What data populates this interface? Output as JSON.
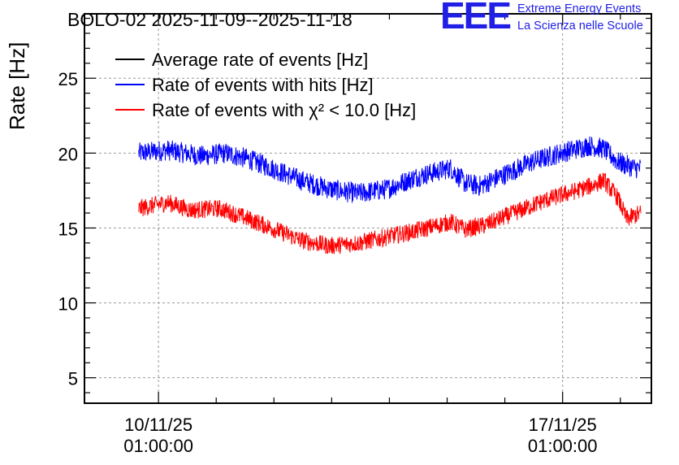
{
  "logo": {
    "letters": "EEE",
    "line1": "Extreme Energy Events",
    "line2": "La Scienza nelle Scuole",
    "color": "#1f1fe6"
  },
  "chart_data": {
    "type": "line",
    "title": "BOLO-02 2025-11-09--2025-11-18",
    "xlabel": "",
    "ylabel": "Rate [Hz]",
    "xlim_days_since_2025_11_09": [
      -0.24,
      9.58
    ],
    "ylim": [
      3.3,
      29.3
    ],
    "yticks": [
      5,
      10,
      15,
      20,
      25
    ],
    "xticks": [
      {
        "x_days": 1.042,
        "line1": "10/11/25",
        "line2": "01:00:00"
      },
      {
        "x_days": 8.042,
        "line1": "17/11/25",
        "line2": "01:00:00"
      }
    ],
    "grid": true,
    "legend_position": "top-left",
    "series": [
      {
        "name": "Average rate of events [Hz]",
        "color": "#000000",
        "points": []
      },
      {
        "name": "Rate of events with hits [Hz]",
        "color": "#0000ff",
        "noise_hz": 0.7,
        "points": [
          [
            0.7,
            20.0
          ],
          [
            1.2,
            20.2
          ],
          [
            1.8,
            19.8
          ],
          [
            2.2,
            20.0
          ],
          [
            2.6,
            19.6
          ],
          [
            3.0,
            19.0
          ],
          [
            3.5,
            18.2
          ],
          [
            4.0,
            17.6
          ],
          [
            4.5,
            17.3
          ],
          [
            5.0,
            17.6
          ],
          [
            5.5,
            18.4
          ],
          [
            6.1,
            19.0
          ],
          [
            6.35,
            18.0
          ],
          [
            6.6,
            17.8
          ],
          [
            7.0,
            18.5
          ],
          [
            7.5,
            19.4
          ],
          [
            8.0,
            20.0
          ],
          [
            8.5,
            20.5
          ],
          [
            8.75,
            20.3
          ],
          [
            9.0,
            19.4
          ],
          [
            9.3,
            19.0
          ],
          [
            9.4,
            19.0
          ]
        ]
      },
      {
        "name": "Rate of events with χ² < 10.0 [Hz]",
        "color": "#ff0000",
        "noise_hz": 0.6,
        "points": [
          [
            0.7,
            16.3
          ],
          [
            1.2,
            16.7
          ],
          [
            1.6,
            16.2
          ],
          [
            2.1,
            16.3
          ],
          [
            2.6,
            15.6
          ],
          [
            3.0,
            15.0
          ],
          [
            3.5,
            14.2
          ],
          [
            4.0,
            13.8
          ],
          [
            4.5,
            14.0
          ],
          [
            5.0,
            14.4
          ],
          [
            5.5,
            14.8
          ],
          [
            6.1,
            15.4
          ],
          [
            6.35,
            14.9
          ],
          [
            6.7,
            15.2
          ],
          [
            7.2,
            16.0
          ],
          [
            7.7,
            16.8
          ],
          [
            8.2,
            17.4
          ],
          [
            8.6,
            17.9
          ],
          [
            8.75,
            18.2
          ],
          [
            9.0,
            17.0
          ],
          [
            9.15,
            15.6
          ],
          [
            9.4,
            16.0
          ]
        ]
      }
    ],
    "legend": [
      {
        "label": "Average rate of events [Hz]",
        "color": "#000000"
      },
      {
        "label": "Rate of events with hits [Hz]",
        "color": "#0000ff"
      },
      {
        "label": "Rate of events with χ² < 10.0 [Hz]",
        "color": "#ff0000"
      }
    ]
  }
}
